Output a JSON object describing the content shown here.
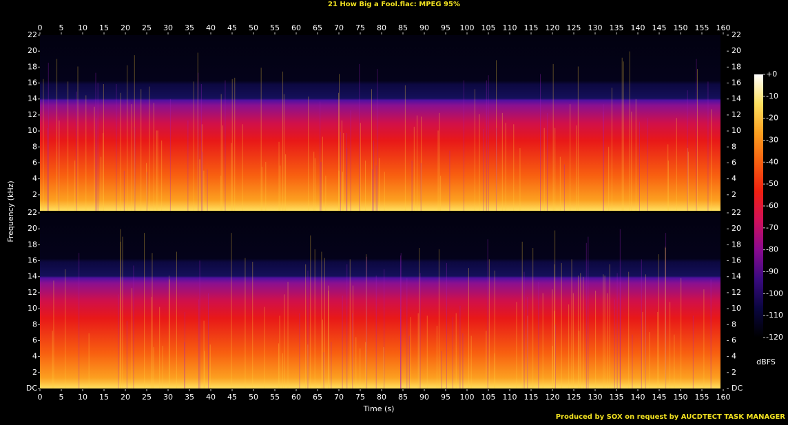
{
  "chart_data": {
    "type": "spectrogram",
    "title": "21 How Big a Fool.flac: MPEG 95%",
    "x_label": "Time (s)",
    "y_label": "Frequency (kHz)",
    "footer": "Produced by SOX on request by AUCDTECT TASK MANAGER",
    "xlim": [
      0,
      160
    ],
    "xticks": [
      0,
      5,
      10,
      15,
      20,
      25,
      30,
      35,
      40,
      45,
      50,
      55,
      60,
      65,
      70,
      75,
      80,
      85,
      90,
      95,
      100,
      105,
      110,
      115,
      120,
      125,
      130,
      135,
      140,
      145,
      150,
      155,
      160
    ],
    "panels": [
      {
        "ylim": [
          0,
          22
        ],
        "yticks": [
          2,
          4,
          6,
          8,
          10,
          12,
          14,
          16,
          18,
          20,
          22
        ]
      },
      {
        "ylim": [
          0,
          22
        ],
        "yticks": [
          {
            "value": 0,
            "label": "DC"
          },
          2,
          4,
          6,
          8,
          10,
          12,
          14,
          16,
          18,
          20,
          22
        ]
      }
    ],
    "colorbar": {
      "label": "dBFS",
      "lim": [
        -120,
        0
      ],
      "ticks": [
        {
          "value": 0,
          "label": "+0"
        },
        -10,
        -20,
        -30,
        -40,
        -50,
        -60,
        -70,
        -80,
        -90,
        -100,
        -110,
        -120
      ],
      "colors": [
        "#000000",
        "#0a0640",
        "#3a0a80",
        "#8a0a90",
        "#d0105a",
        "#f02010",
        "#f86010",
        "#fca020",
        "#fde060",
        "#ffffff"
      ]
    }
  }
}
